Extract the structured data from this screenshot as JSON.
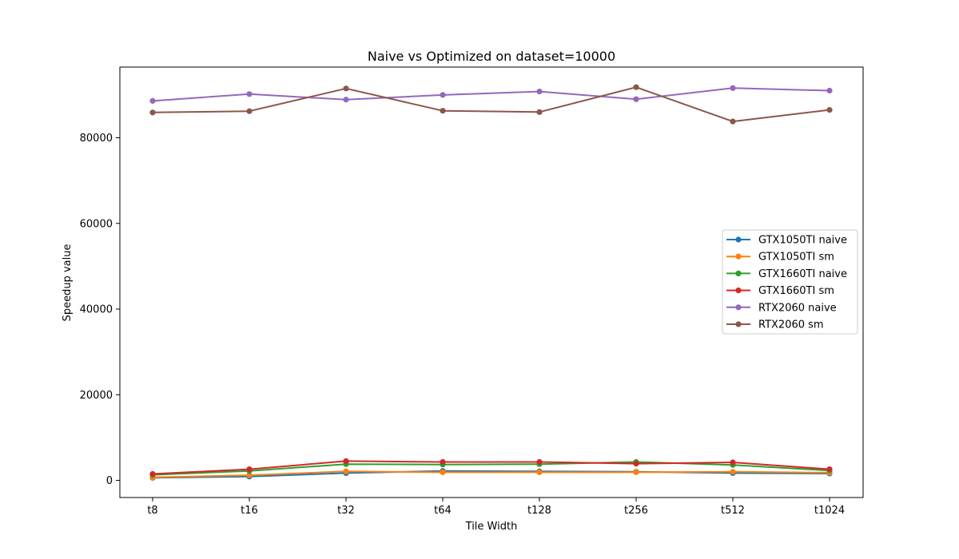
{
  "chart_data": {
    "type": "line",
    "title": "Naive vs Optimized on dataset=10000",
    "xlabel": "Tile Width",
    "ylabel": "Speedup value",
    "categories": [
      "t8",
      "t16",
      "t32",
      "t64",
      "t128",
      "t256",
      "t512",
      "t1024"
    ],
    "ylim": [
      -4000,
      96500
    ],
    "yticks": [
      0,
      20000,
      40000,
      60000,
      80000
    ],
    "grid": false,
    "legend_position": "center-right",
    "series": [
      {
        "name": "GTX1050TI naive",
        "color": "#1f77b4",
        "values": [
          600,
          900,
          1700,
          2200,
          2100,
          2000,
          1700,
          1600
        ]
      },
      {
        "name": "GTX1050TI sm",
        "color": "#ff7f0e",
        "values": [
          700,
          1200,
          2100,
          1900,
          1900,
          1900,
          2000,
          1800
        ]
      },
      {
        "name": "GTX1660TI naive",
        "color": "#2ca02c",
        "values": [
          1300,
          2200,
          3800,
          3700,
          3800,
          4300,
          3600,
          2300
        ]
      },
      {
        "name": "GTX1660TI sm",
        "color": "#d62728",
        "values": [
          1500,
          2600,
          4500,
          4300,
          4300,
          3900,
          4200,
          2600
        ]
      },
      {
        "name": "RTX2060 naive",
        "color": "#9467bd",
        "values": [
          88600,
          90200,
          88900,
          90000,
          90800,
          89000,
          91600,
          91000
        ]
      },
      {
        "name": "RTX2060 sm",
        "color": "#8c564b",
        "values": [
          85900,
          86200,
          91500,
          86300,
          86000,
          91800,
          83800,
          86500
        ]
      }
    ]
  }
}
